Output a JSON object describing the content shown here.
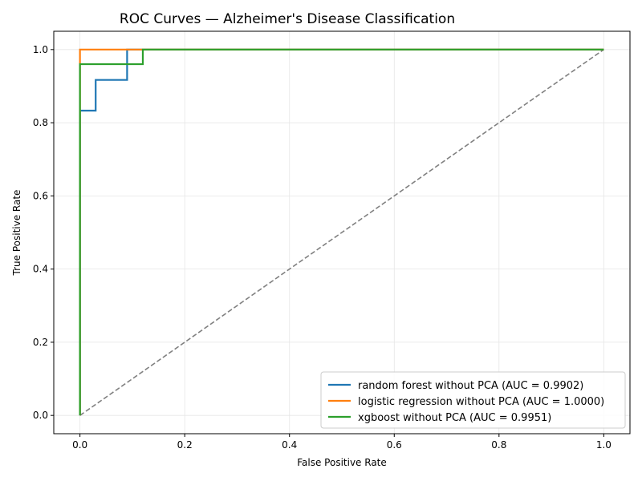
{
  "chart_data": {
    "type": "line",
    "title": "ROC Curves — Alzheimer's Disease Classification",
    "xlabel": "False Positive Rate",
    "ylabel": "True Positive Rate",
    "xlim": [
      -0.05,
      1.05
    ],
    "ylim": [
      -0.05,
      1.05
    ],
    "xticks": [
      "0.0",
      "0.2",
      "0.4",
      "0.6",
      "0.8",
      "1.0"
    ],
    "yticks": [
      "0.0",
      "0.2",
      "0.4",
      "0.6",
      "0.8",
      "1.0"
    ],
    "grid": true,
    "legend_position": "bottom-right",
    "series": [
      {
        "name": "random forest without PCA (AUC = 0.9902)",
        "color": "#1f77b4",
        "x": [
          0,
          0,
          0.03,
          0.03,
          0.09,
          0.09,
          1.0
        ],
        "y": [
          0,
          0.833,
          0.833,
          0.917,
          0.917,
          1.0,
          1.0
        ]
      },
      {
        "name": "logistic regression without PCA (AUC = 1.0000)",
        "color": "#ff7f0e",
        "x": [
          0,
          0,
          1.0
        ],
        "y": [
          0,
          1.0,
          1.0
        ]
      },
      {
        "name": "xgboost without PCA (AUC = 0.9951)",
        "color": "#2ca02c",
        "x": [
          0,
          0,
          0.12,
          0.12,
          1.0
        ],
        "y": [
          0,
          0.96,
          0.96,
          1.0,
          1.0
        ]
      }
    ],
    "reference_line": {
      "x": [
        0,
        1
      ],
      "y": [
        0,
        1
      ],
      "color": "#808080",
      "style": "dashed"
    }
  }
}
